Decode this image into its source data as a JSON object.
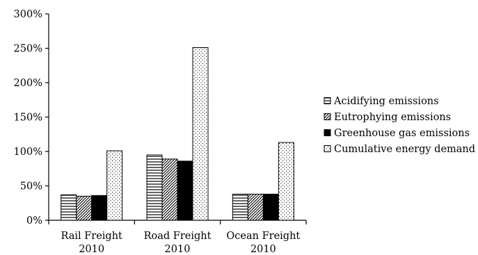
{
  "chart_data": {
    "type": "bar",
    "categories": [
      [
        "Rail Freight",
        "2010"
      ],
      [
        "Road Freight",
        "2010"
      ],
      [
        "Ocean Freight",
        "2010"
      ]
    ],
    "series": [
      {
        "name": "Acidifying emissions",
        "pattern": "horizontal-lines",
        "values": [
          37,
          95,
          38
        ]
      },
      {
        "name": "Eutrophying emissions",
        "pattern": "diagonal-lines",
        "values": [
          35,
          89,
          38
        ]
      },
      {
        "name": "Greenhouse gas emissions",
        "pattern": "solid",
        "values": [
          36,
          86,
          38
        ]
      },
      {
        "name": "Cumulative energy demand",
        "pattern": "dots",
        "values": [
          101,
          251,
          113
        ]
      }
    ],
    "yticks": [
      "0%",
      "50%",
      "100%",
      "150%",
      "200%",
      "250%",
      "300%"
    ],
    "ylim": [
      0,
      300
    ],
    "title": "",
    "xlabel": "",
    "ylabel": "",
    "legend_position": "right",
    "grid": false,
    "colors": {
      "bar_stroke": "#000000",
      "solid_fill": "#000000",
      "background": "#ffffff"
    }
  }
}
